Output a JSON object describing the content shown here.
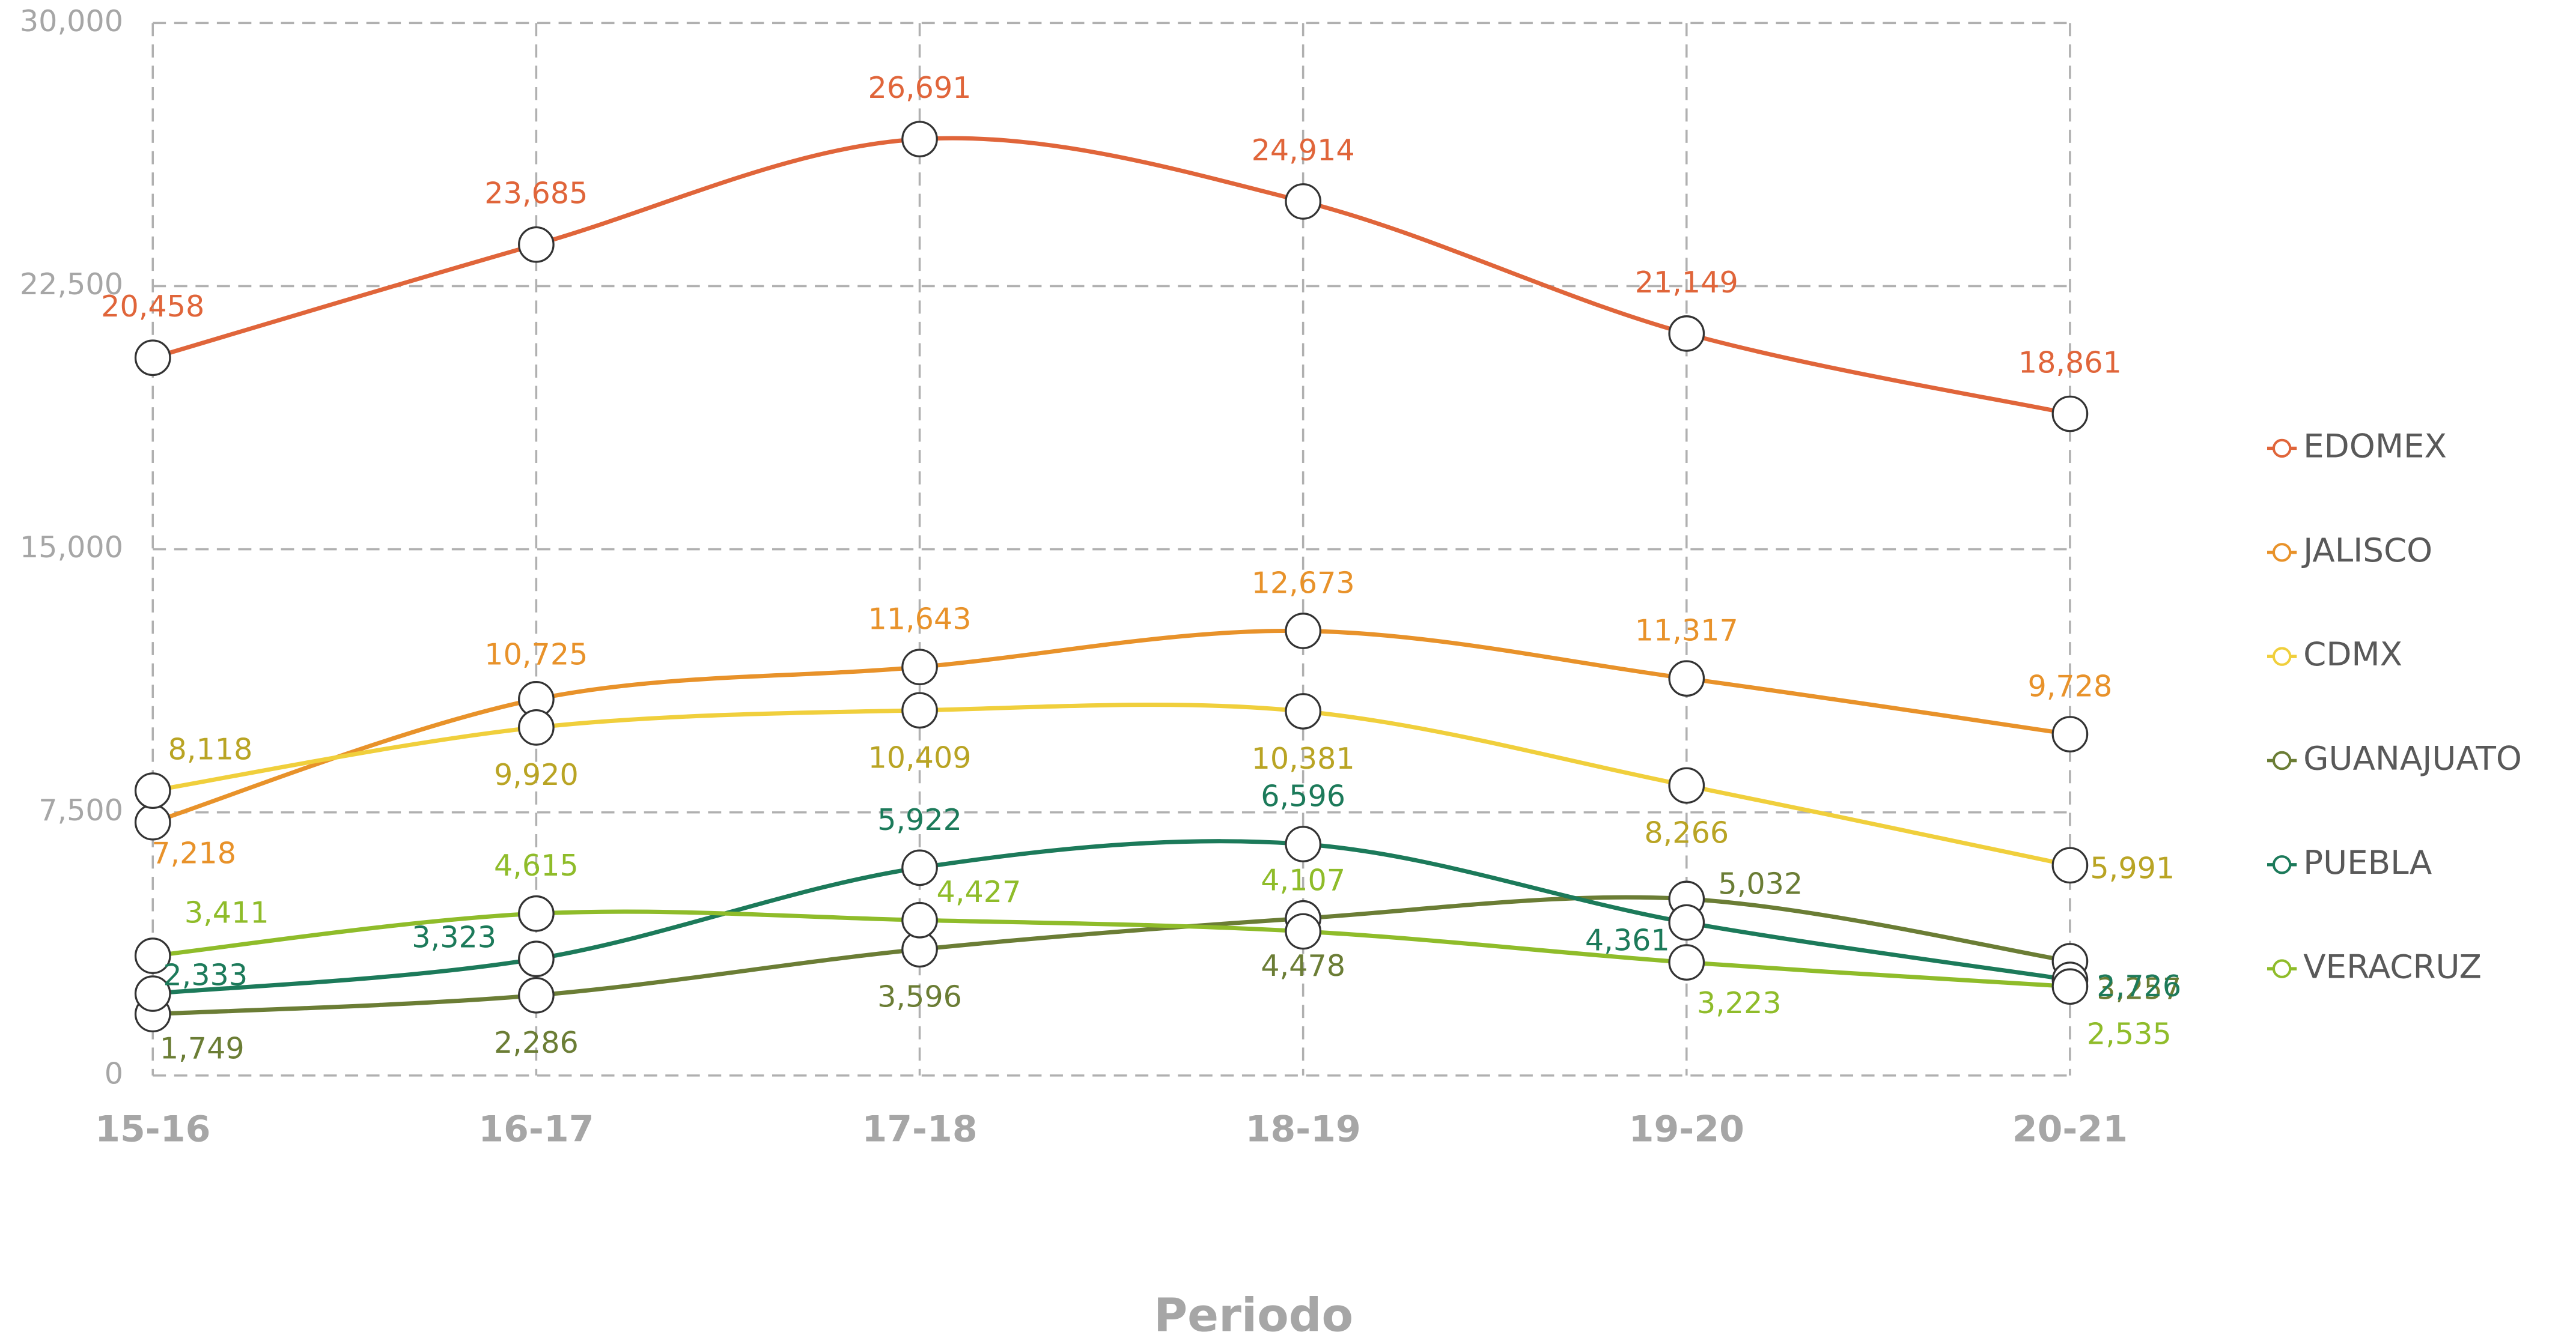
{
  "chart_data": {
    "type": "line",
    "smooth": true,
    "grid": true,
    "legend": "right",
    "xlabel": "Periodo",
    "categories": [
      "15-16",
      "16-17",
      "17-18",
      "18-19",
      "19-20",
      "20-21"
    ],
    "ylim": [
      0,
      30000
    ],
    "yticks": [
      0,
      {
        "value": 7500,
        "label": "7,500"
      },
      {
        "value": 15000,
        "label": "15,000"
      },
      {
        "value": 22500,
        "label": "22,500"
      },
      {
        "value": 30000,
        "label": "30,000"
      }
    ],
    "series": [
      {
        "name": "EDOMEX",
        "color": "#e0653a",
        "values": [
          20458,
          23685,
          26691,
          24914,
          21149,
          18861
        ],
        "value_labels": [
          "20,458",
          "23,685",
          "26,691",
          "24,914",
          "21,149",
          "18,861"
        ]
      },
      {
        "name": "JALISCO",
        "color": "#e8922a",
        "values": [
          7218,
          10725,
          11643,
          12673,
          11317,
          9728
        ],
        "value_labels": [
          "7,218",
          "10,725",
          "11,643",
          "12,673",
          "11,317",
          "9,728"
        ]
      },
      {
        "name": "CDMX",
        "color": "#f0cf3c",
        "label_color": "#b9a424",
        "values": [
          8118,
          9920,
          10409,
          10381,
          8266,
          5991
        ],
        "value_labels": [
          "8,118",
          "9,920",
          "10,409",
          "10,381",
          "8,266",
          "5,991"
        ]
      },
      {
        "name": "GUANAJUATO",
        "color": "#6b7d35",
        "values": [
          1749,
          2286,
          3596,
          4478,
          5032,
          3257
        ],
        "value_labels": [
          "1,749",
          "2,286",
          "3,596",
          "4,478",
          "5,032",
          "3,257"
        ]
      },
      {
        "name": "PUEBLA",
        "color": "#1c7a5a",
        "values": [
          2333,
          3323,
          5922,
          6596,
          4361,
          2726
        ],
        "value_labels": [
          "2,333",
          "3,323",
          "5,922",
          "6,596",
          "4,361",
          "2,726"
        ]
      },
      {
        "name": "VERACRUZ",
        "color": "#8fbc2a",
        "values": [
          3411,
          4615,
          4427,
          4107,
          3223,
          2535
        ],
        "value_labels": [
          "3,411",
          "4,615",
          "4,427",
          "4,107",
          "3,223",
          "2,535"
        ]
      }
    ]
  }
}
